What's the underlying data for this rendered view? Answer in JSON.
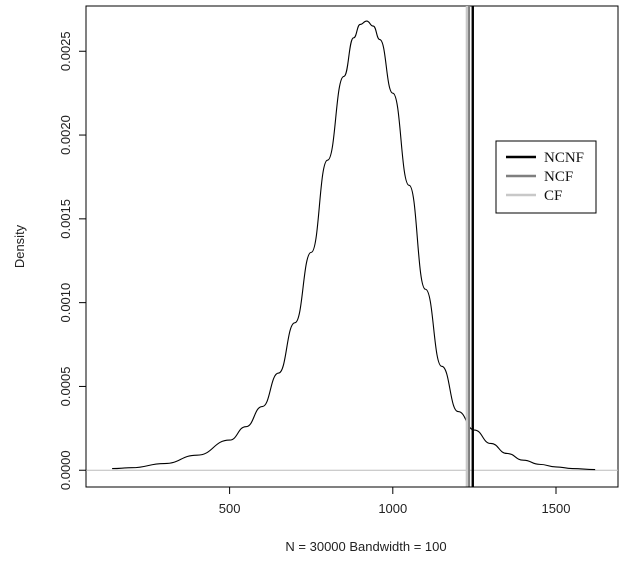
{
  "chart_data": {
    "type": "line",
    "title": "",
    "xlabel": "N = 30000   Bandwidth = 100",
    "ylabel": "Density",
    "xlim": [
      60,
      1690
    ],
    "ylim": [
      -0.0001,
      0.00277
    ],
    "x_ticks": [
      500,
      1000,
      1500
    ],
    "x_tick_labels": [
      "500",
      "1000",
      "1500"
    ],
    "y_ticks": [
      0.0,
      0.0005,
      0.001,
      0.0015,
      0.002,
      0.0025
    ],
    "y_tick_labels": [
      "0.0000",
      "0.0005",
      "0.0010",
      "0.0015",
      "0.0020",
      "0.0025"
    ],
    "grid": false,
    "density_curve": {
      "x": [
        140,
        200,
        300,
        400,
        500,
        550,
        600,
        650,
        700,
        750,
        800,
        850,
        880,
        900,
        920,
        940,
        960,
        1000,
        1050,
        1100,
        1150,
        1200,
        1250,
        1300,
        1350,
        1400,
        1450,
        1500,
        1550,
        1620
      ],
      "y": [
        1e-05,
        1.5e-05,
        4e-05,
        9e-05,
        0.00018,
        0.00026,
        0.00038,
        0.00058,
        0.00088,
        0.0013,
        0.00185,
        0.00235,
        0.00258,
        0.00266,
        0.00268,
        0.00265,
        0.00257,
        0.00225,
        0.0017,
        0.00108,
        0.00062,
        0.00035,
        0.00024,
        0.00016,
        0.0001,
        6e-05,
        3.5e-05,
        2e-05,
        1e-05,
        4e-06
      ],
      "color": "#000000"
    },
    "baseline": {
      "y": 0.0,
      "color": "#bbbbbb"
    },
    "series": [
      {
        "name": "NCNF",
        "x": 1245,
        "color": "#000000"
      },
      {
        "name": "NCF",
        "x": 1233,
        "color": "#7f7f7f"
      },
      {
        "name": "CF",
        "x": 1227,
        "color": "#c8c8c8"
      }
    ],
    "legend_placement": "right"
  }
}
